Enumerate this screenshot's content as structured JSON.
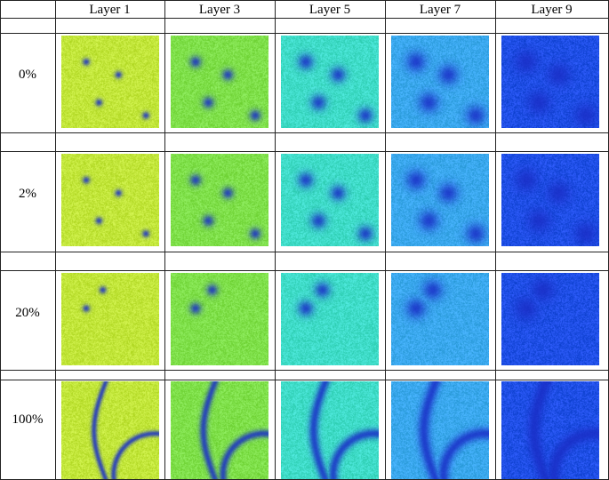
{
  "table": {
    "header_blank": "",
    "columns": [
      {
        "label": "Layer 1"
      },
      {
        "label": "Layer 3"
      },
      {
        "label": "Layer 5"
      },
      {
        "label": "Layer 7"
      },
      {
        "label": "Layer 9"
      }
    ],
    "rows": [
      {
        "label": "0%",
        "pattern": "spots-4"
      },
      {
        "label": "2%",
        "pattern": "spots-4"
      },
      {
        "label": "20%",
        "pattern": "spots-2"
      },
      {
        "label": "100%",
        "pattern": "curves"
      }
    ],
    "layer_colors": [
      "#c2e63a",
      "#7fe04a",
      "#3fdcc8",
      "#3aa8ee",
      "#1f4fe6"
    ],
    "defect_color": "#1a2fc8"
  }
}
